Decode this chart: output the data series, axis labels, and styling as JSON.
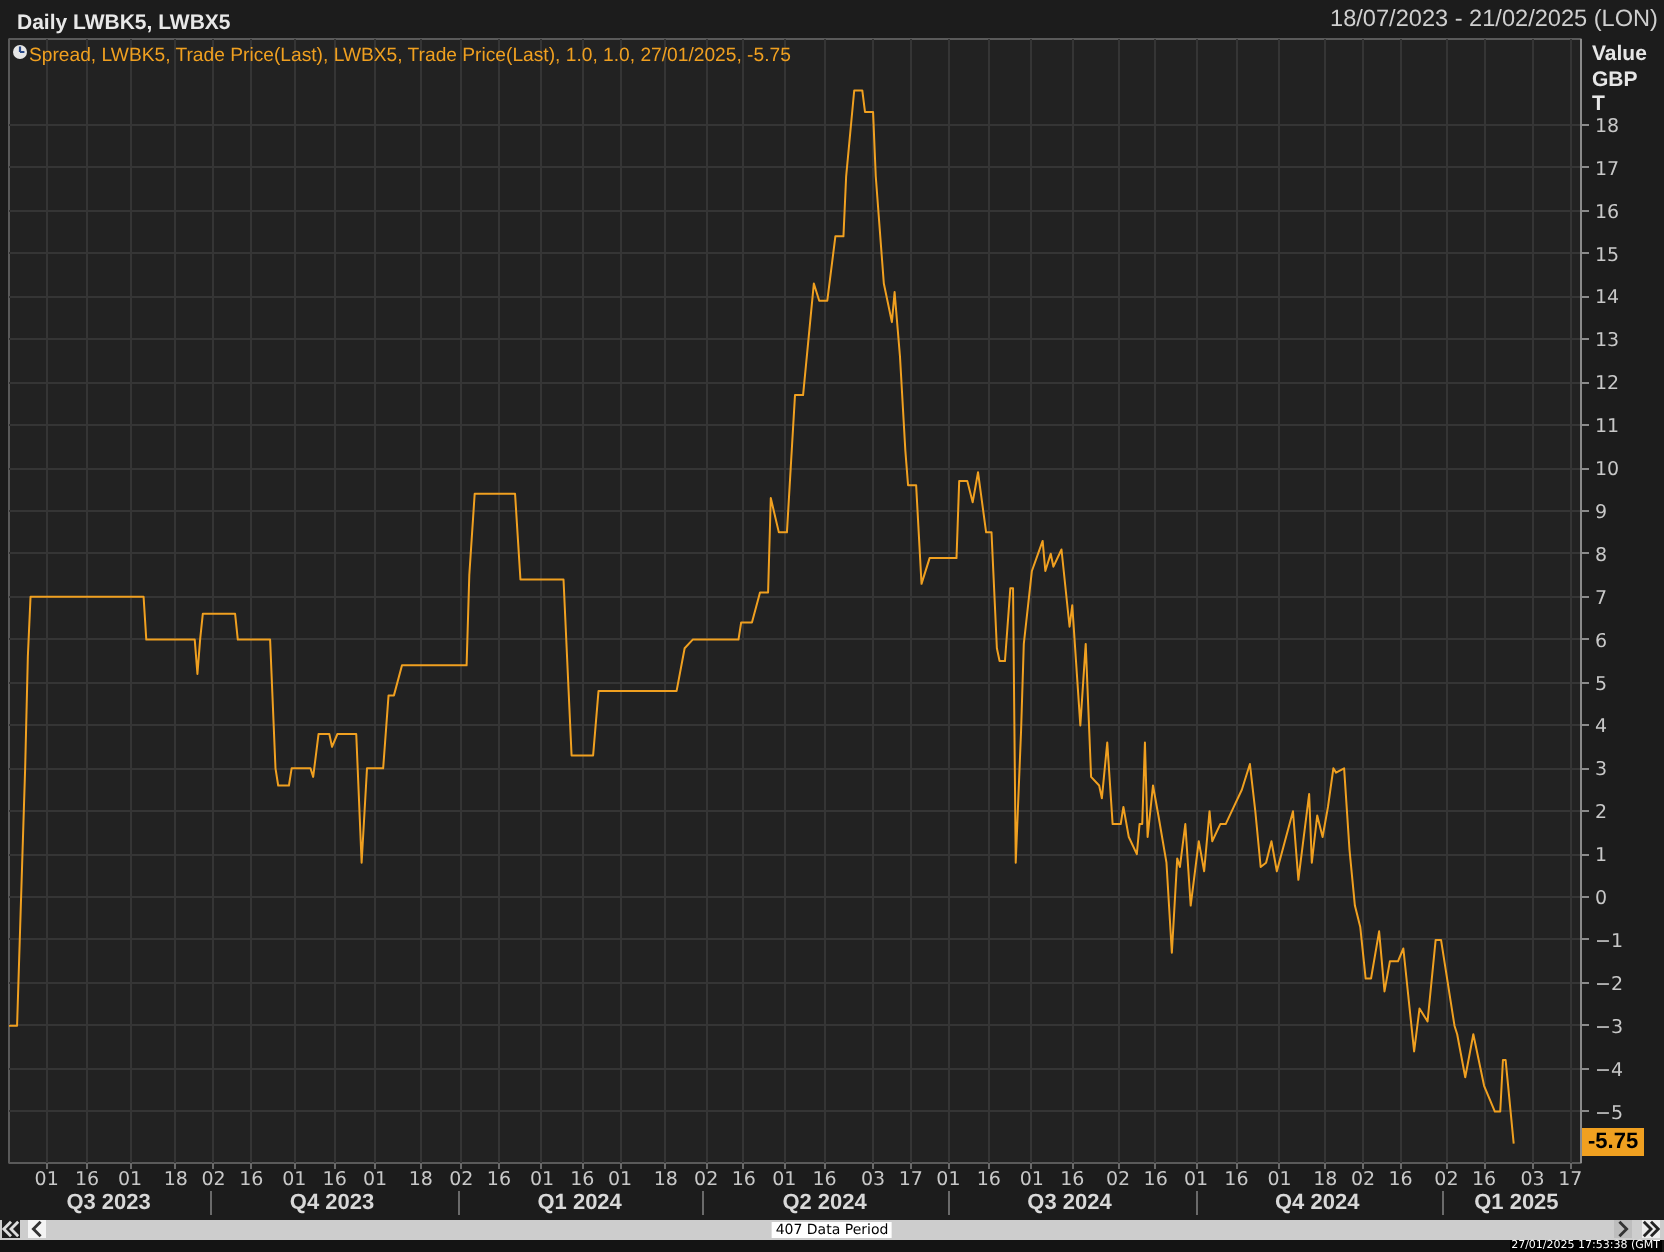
{
  "chart_data": {
    "type": "line",
    "title": "Daily LWBK5, LWBX5",
    "subtitle": "18/07/2023 - 21/02/2025 (LON)",
    "ylabel": "Value\nGBP\nT",
    "legend": "top left",
    "grid": true,
    "xlim": [
      "2023-07-18",
      "2025-02-21"
    ],
    "ylim": [
      -6.2,
      20
    ],
    "yticks": [
      -5,
      -4,
      -3,
      -2,
      -1,
      0,
      1,
      2,
      3,
      4,
      5,
      6,
      7,
      8,
      9,
      10,
      11,
      12,
      13,
      14,
      15,
      16,
      17,
      18
    ],
    "xticks": [
      {
        "value": "2023-08-01",
        "label": "01"
      },
      {
        "value": "2023-08-16",
        "label": "16"
      },
      {
        "value": "2023-09-01",
        "label": "01"
      },
      {
        "value": "2023-09-18",
        "label": "18"
      },
      {
        "value": "2023-10-02",
        "label": "02"
      },
      {
        "value": "2023-10-16",
        "label": "16"
      },
      {
        "value": "2023-11-01",
        "label": "01"
      },
      {
        "value": "2023-11-16",
        "label": "16"
      },
      {
        "value": "2023-12-01",
        "label": "01"
      },
      {
        "value": "2023-12-18",
        "label": "18"
      },
      {
        "value": "2024-01-02",
        "label": "02"
      },
      {
        "value": "2024-01-16",
        "label": "16"
      },
      {
        "value": "2024-02-01",
        "label": "01"
      },
      {
        "value": "2024-02-16",
        "label": "16"
      },
      {
        "value": "2024-03-01",
        "label": "01"
      },
      {
        "value": "2024-03-18",
        "label": "18"
      },
      {
        "value": "2024-04-02",
        "label": "02"
      },
      {
        "value": "2024-04-16",
        "label": "16"
      },
      {
        "value": "2024-05-01",
        "label": "01"
      },
      {
        "value": "2024-05-16",
        "label": "16"
      },
      {
        "value": "2024-06-03",
        "label": "03"
      },
      {
        "value": "2024-06-17",
        "label": "17"
      },
      {
        "value": "2024-07-01",
        "label": "01"
      },
      {
        "value": "2024-07-16",
        "label": "16"
      },
      {
        "value": "2024-08-01",
        "label": "01"
      },
      {
        "value": "2024-08-16",
        "label": "16"
      },
      {
        "value": "2024-09-02",
        "label": "02"
      },
      {
        "value": "2024-09-16",
        "label": "16"
      },
      {
        "value": "2024-10-01",
        "label": "01"
      },
      {
        "value": "2024-10-16",
        "label": "16"
      },
      {
        "value": "2024-11-01",
        "label": "01"
      },
      {
        "value": "2024-11-18",
        "label": "18"
      },
      {
        "value": "2024-12-02",
        "label": "02"
      },
      {
        "value": "2024-12-16",
        "label": "16"
      },
      {
        "value": "2025-01-02",
        "label": "02"
      },
      {
        "value": "2025-01-16",
        "label": "16"
      },
      {
        "value": "2025-02-03",
        "label": "03"
      },
      {
        "value": "2025-02-17",
        "label": "17"
      }
    ],
    "x2lim": [
      "2023-07-18",
      "2025-02-21"
    ],
    "x2ticks": [
      {
        "value": "2023-08-24",
        "label": "Q3 2023"
      },
      {
        "value": "2023-10-01",
        "label": null
      },
      {
        "value": "2023-11-15",
        "label": "Q4 2023"
      },
      {
        "value": "2024-01-01",
        "label": null
      },
      {
        "value": "2024-02-15",
        "label": "Q1 2024"
      },
      {
        "value": "2024-04-01",
        "label": null
      },
      {
        "value": "2024-05-16",
        "label": "Q2 2024"
      },
      {
        "value": "2024-07-01",
        "label": null
      },
      {
        "value": "2024-08-15",
        "label": "Q3 2024"
      },
      {
        "value": "2024-10-01",
        "label": null
      },
      {
        "value": "2024-11-15",
        "label": "Q4 2024"
      },
      {
        "value": "2025-01-01",
        "label": null
      },
      {
        "value": "2025-01-28",
        "label": "Q1 2025"
      }
    ],
    "annotations": [
      "407 Data Period",
      "27/01/2025 17:53:38 (GMT",
      {
        "text": "-5.75",
        "y": -5.75
      }
    ],
    "x": [
      "2023-07-18",
      "2023-07-21",
      "2023-07-24",
      "2023-07-25",
      "2023-07-26",
      "2023-09-06",
      "2023-09-07",
      "2023-09-25",
      "2023-09-26",
      "2023-09-27",
      "2023-09-28",
      "2023-10-10",
      "2023-10-11",
      "2023-10-23",
      "2023-10-24",
      "2023-10-25",
      "2023-10-26",
      "2023-10-30",
      "2023-10-31",
      "2023-11-07",
      "2023-11-08",
      "2023-11-10",
      "2023-11-14",
      "2023-11-15",
      "2023-11-17",
      "2023-11-24",
      "2023-11-26",
      "2023-11-28",
      "2023-12-04",
      "2023-12-06",
      "2023-12-08",
      "2023-12-11",
      "2024-01-04",
      "2024-01-05",
      "2024-01-07",
      "2024-01-22",
      "2024-01-23",
      "2024-01-24",
      "2024-02-09",
      "2024-02-12",
      "2024-02-20",
      "2024-02-22",
      "2024-03-22",
      "2024-03-25",
      "2024-03-28",
      "2024-04-14",
      "2024-04-15",
      "2024-04-19",
      "2024-04-22",
      "2024-04-25",
      "2024-04-26",
      "2024-04-29",
      "2024-05-02",
      "2024-05-05",
      "2024-05-08",
      "2024-05-12",
      "2024-05-14",
      "2024-05-17",
      "2024-05-20",
      "2024-05-23",
      "2024-05-24",
      "2024-05-27",
      "2024-05-30",
      "2024-05-31",
      "2024-06-03",
      "2024-06-04",
      "2024-06-07",
      "2024-06-10",
      "2024-06-11",
      "2024-06-13",
      "2024-06-15",
      "2024-06-16",
      "2024-06-19",
      "2024-06-21",
      "2024-06-24",
      "2024-07-04",
      "2024-07-05",
      "2024-07-08",
      "2024-07-10",
      "2024-07-12",
      "2024-07-15",
      "2024-07-17",
      "2024-07-19",
      "2024-07-20",
      "2024-07-22",
      "2024-07-24",
      "2024-07-25",
      "2024-07-26",
      "2024-07-28",
      "2024-07-29",
      "2024-08-01",
      "2024-08-05",
      "2024-08-06",
      "2024-08-08",
      "2024-08-09",
      "2024-08-12",
      "2024-08-15",
      "2024-08-16",
      "2024-08-19",
      "2024-08-21",
      "2024-08-23",
      "2024-08-26",
      "2024-08-27",
      "2024-08-29",
      "2024-08-31",
      "2024-09-03",
      "2024-09-04",
      "2024-09-06",
      "2024-09-09",
      "2024-09-10",
      "2024-09-11",
      "2024-09-12",
      "2024-09-13",
      "2024-09-15",
      "2024-09-17",
      "2024-09-20",
      "2024-09-22",
      "2024-09-24",
      "2024-09-25",
      "2024-09-27",
      "2024-09-29",
      "2024-10-02",
      "2024-10-04",
      "2024-10-06",
      "2024-10-07",
      "2024-10-10",
      "2024-10-12",
      "2024-10-15",
      "2024-10-18",
      "2024-10-21",
      "2024-10-23",
      "2024-10-25",
      "2024-10-27",
      "2024-10-29",
      "2024-10-31",
      "2024-11-06",
      "2024-11-08",
      "2024-11-12",
      "2024-11-13",
      "2024-11-15",
      "2024-11-17",
      "2024-11-19",
      "2024-11-21",
      "2024-11-22",
      "2024-11-25",
      "2024-11-27",
      "2024-11-29",
      "2024-12-01",
      "2024-12-03",
      "2024-12-05",
      "2024-12-08",
      "2024-12-10",
      "2024-12-12",
      "2024-12-15",
      "2024-12-17",
      "2024-12-21",
      "2024-12-23",
      "2024-12-26",
      "2024-12-29",
      "2024-12-31",
      "2025-01-05",
      "2025-01-06",
      "2025-01-09",
      "2025-01-12",
      "2025-01-16",
      "2025-01-20",
      "2025-01-22",
      "2025-01-23",
      "2025-01-24",
      "2025-01-27"
    ],
    "series": [
      {
        "name": "Spread, LWBK5, Trade Price(Last), LWBX5, Trade Price(Last),  1.0, 1.0, 27/01/2025, -5.75",
        "color": "#f0a020",
        "values": [
          -3.0,
          -3.0,
          3.0,
          5.6,
          7.0,
          7.0,
          6.0,
          6.0,
          5.2,
          6.0,
          6.6,
          6.6,
          6.0,
          6.0,
          4.5,
          3.0,
          2.6,
          2.6,
          3.0,
          3.0,
          2.8,
          3.8,
          3.8,
          3.5,
          3.8,
          3.8,
          0.8,
          3.0,
          3.0,
          4.7,
          4.7,
          5.4,
          5.4,
          7.5,
          9.4,
          9.4,
          8.4,
          7.4,
          7.4,
          3.3,
          3.3,
          4.8,
          4.8,
          5.8,
          6.0,
          6.0,
          6.4,
          6.4,
          7.1,
          7.1,
          9.3,
          8.5,
          8.5,
          11.7,
          11.7,
          14.3,
          13.9,
          13.9,
          15.4,
          15.4,
          16.8,
          18.8,
          18.8,
          18.3,
          18.3,
          16.8,
          14.3,
          13.4,
          14.1,
          12.6,
          10.4,
          9.6,
          9.6,
          7.3,
          7.9,
          7.9,
          9.7,
          9.7,
          9.2,
          9.9,
          8.5,
          8.5,
          5.8,
          5.5,
          5.5,
          7.2,
          7.2,
          0.8,
          3.9,
          5.9,
          7.6,
          8.3,
          7.6,
          8.0,
          7.7,
          8.1,
          6.3,
          6.8,
          4.0,
          5.9,
          2.8,
          2.6,
          2.3,
          3.6,
          1.7,
          1.7,
          2.1,
          1.4,
          1.0,
          1.7,
          1.7,
          3.6,
          1.4,
          2.6,
          1.9,
          0.8,
          -1.3,
          0.9,
          0.7,
          1.7,
          -0.2,
          1.3,
          0.6,
          2.0,
          1.3,
          1.7,
          1.7,
          2.1,
          2.5,
          3.1,
          2.0,
          0.7,
          0.8,
          1.3,
          0.6,
          2.0,
          0.4,
          2.4,
          0.8,
          1.9,
          1.4,
          2.1,
          3.0,
          2.9,
          3.0,
          1.1,
          -0.2,
          -0.7,
          -1.9,
          -1.9,
          -0.8,
          -2.2,
          -1.5,
          -1.5,
          -1.2,
          -3.6,
          -2.6,
          -2.9,
          -1.0,
          -1.0,
          -3.0,
          -3.2,
          -4.2,
          -3.2,
          -4.4,
          -5.0,
          -5.0,
          -3.8,
          -3.8,
          -5.75
        ]
      }
    ]
  }
}
